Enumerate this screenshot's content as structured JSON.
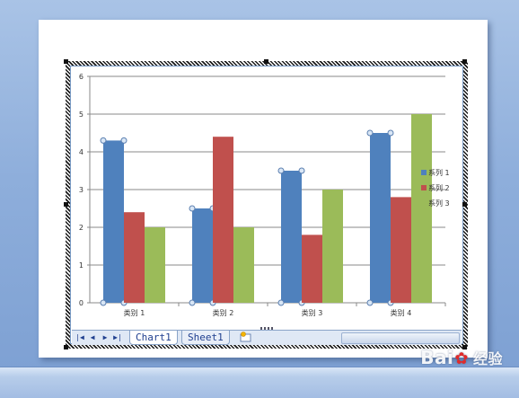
{
  "chart_data": {
    "type": "bar",
    "categories": [
      "类别 1",
      "类别 2",
      "类别 3",
      "类别 4"
    ],
    "series": [
      {
        "name": "系列 1",
        "color": "#4f81bd",
        "values": [
          4.3,
          2.5,
          3.5,
          4.5
        ]
      },
      {
        "name": "系列 2",
        "color": "#c0504d",
        "values": [
          2.4,
          4.4,
          1.8,
          2.8
        ]
      },
      {
        "name": "系列 3",
        "color": "#9bbb59",
        "values": [
          2.0,
          2.0,
          3.0,
          5.0
        ]
      }
    ],
    "yticks": [
      "0",
      "1",
      "2",
      "3",
      "4",
      "5",
      "6"
    ],
    "ylim": [
      0,
      6
    ],
    "title": "",
    "xlabel": "",
    "ylabel": "",
    "grid": true,
    "legend_position": "right",
    "selected_series": "系列 1"
  },
  "sheet_tabs": {
    "tabs": [
      "Chart1",
      "Sheet1"
    ],
    "active": "Chart1",
    "nav_icons": [
      "first-sheet-icon",
      "prev-sheet-icon",
      "next-sheet-icon",
      "last-sheet-icon"
    ],
    "new_sheet_icon": "insert-worksheet-icon"
  },
  "watermark": {
    "brand_a": "Bai",
    "brand_b": "经验",
    "paw_icon": "paw-icon"
  }
}
